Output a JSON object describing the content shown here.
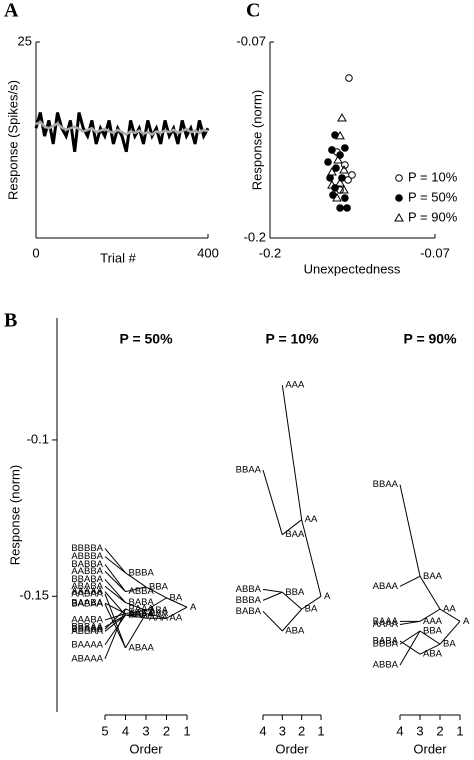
{
  "chart_data": [
    {
      "type": "line",
      "panel_label": "A",
      "xlabel": "Trial #",
      "ylabel": "Response (Spikes/s)",
      "xlim": [
        0,
        400
      ],
      "ylim": [
        0,
        25
      ],
      "xticks": [
        0,
        400
      ],
      "yticks": [
        25
      ],
      "x": [
        0,
        10,
        20,
        30,
        40,
        50,
        60,
        70,
        80,
        90,
        100,
        110,
        120,
        130,
        140,
        150,
        160,
        170,
        180,
        190,
        200,
        210,
        220,
        230,
        240,
        250,
        260,
        270,
        280,
        290,
        300,
        310,
        320,
        330,
        340,
        350,
        360,
        370,
        380,
        390,
        400
      ],
      "series": [
        {
          "color": "#000000",
          "values": [
            14,
            16,
            13,
            15,
            12,
            16,
            14,
            13,
            15,
            11,
            16,
            14,
            13,
            15,
            12,
            14,
            13,
            15,
            12,
            14,
            13,
            11,
            15,
            13,
            14,
            12,
            15,
            13,
            14,
            12,
            15,
            13,
            14,
            12,
            15,
            13,
            14,
            12,
            15,
            13,
            14
          ]
        },
        {
          "color": "#aaaaaa",
          "values": [
            14.5,
            14.8,
            14.2,
            14.0,
            14.3,
            14.6,
            14.1,
            13.8,
            14.0,
            14.2,
            13.9,
            13.6,
            13.8,
            14.0,
            13.5,
            13.7,
            13.9,
            13.6,
            13.4,
            13.8,
            13.5,
            13.2,
            13.6,
            13.4,
            13.7,
            13.3,
            13.5,
            13.2,
            13.6,
            13.4,
            13.7,
            13.5,
            13.8,
            13.4,
            13.6,
            13.9,
            13.5,
            13.7,
            13.4,
            13.8,
            13.6
          ]
        }
      ]
    },
    {
      "type": "scatter",
      "panel_label": "C",
      "xlabel": "Unexpectedness",
      "ylabel": "Response (norm)",
      "xlim": [
        -0.2,
        -0.07
      ],
      "ylim": [
        -0.2,
        -0.07
      ],
      "xticks": [
        -0.2,
        -0.07
      ],
      "yticks": [
        -0.2,
        -0.07
      ],
      "series": [
        {
          "name": "P = 10%",
          "marker": "open-circle",
          "color": "#000000",
          "x": [
            -0.1378,
            -0.1472,
            -0.141,
            -0.1354,
            -0.1385,
            -0.1448
          ],
          "values": [
            -0.0939,
            -0.143,
            -0.1516,
            -0.1582,
            -0.1615,
            -0.1682
          ]
        },
        {
          "name": "P = 50%",
          "marker": "filled-circle",
          "color": "#000000",
          "x": [
            -0.1488,
            -0.1512,
            -0.1448,
            -0.141,
            -0.1543,
            -0.148,
            -0.1527,
            -0.1433,
            -0.1488,
            -0.141,
            -0.1448,
            -0.1393,
            -0.1504
          ],
          "values": [
            -0.1317,
            -0.1416,
            -0.145,
            -0.1403,
            -0.1496,
            -0.1536,
            -0.1602,
            -0.1602,
            -0.1668,
            -0.1735,
            -0.1801,
            -0.1801,
            -0.1715
          ]
        },
        {
          "name": "P = 90%",
          "marker": "triangle",
          "color": "#000000",
          "x": [
            -0.1433,
            -0.1448,
            -0.1464,
            -0.1512,
            -0.1417,
            -0.1512,
            -0.1448,
            -0.1472,
            -0.1417
          ],
          "values": [
            -0.1204,
            -0.1323,
            -0.1483,
            -0.1562,
            -0.1549,
            -0.1649,
            -0.1635,
            -0.1735,
            -0.1682
          ]
        }
      ]
    },
    {
      "type": "tree",
      "panel_label": "B",
      "ylabel": "Response (norm)",
      "ylim": [
        -0.187,
        -0.061
      ],
      "yticks": [
        -0.1,
        -0.15
      ],
      "panels": [
        {
          "title": "P = 50%",
          "xlabel": "Order",
          "xlim": [
            5,
            1
          ],
          "xticks": [
            5,
            4,
            3,
            2,
            1
          ],
          "nodes": [
            {
              "label": "A",
              "value": -0.1535
            },
            {
              "label": "BA",
              "value": -0.1505
            },
            {
              "label": "AA",
              "value": -0.157
            },
            {
              "label": "BBA",
              "value": -0.147
            },
            {
              "label": "ABA",
              "value": -0.1545
            },
            {
              "label": "BAA",
              "value": -0.1555
            },
            {
              "label": "AAA",
              "value": -0.157
            },
            {
              "label": "BBBA",
              "value": -0.1425
            },
            {
              "label": "ABBA",
              "value": -0.1485
            },
            {
              "label": "BABA",
              "value": -0.152
            },
            {
              "label": "AABA",
              "value": -0.1555
            },
            {
              "label": "BBAA",
              "value": -0.156
            },
            {
              "label": "ABAA",
              "value": -0.1665
            },
            {
              "label": "BAAA",
              "value": -0.154
            },
            {
              "label": "AAAA",
              "value": -0.156
            },
            {
              "label": "BBBBA",
              "value": -0.1347
            },
            {
              "label": "ABBBA",
              "value": -0.1373
            },
            {
              "label": "BABBA",
              "value": -0.1398
            },
            {
              "label": "AABBA",
              "value": -0.142
            },
            {
              "label": "BBABA",
              "value": -0.1446
            },
            {
              "label": "ABABA",
              "value": -0.1468
            },
            {
              "label": "BAABA",
              "value": -0.1522
            },
            {
              "label": "AAABA",
              "value": -0.1576
            },
            {
              "label": "BBBAA",
              "value": -0.1598
            },
            {
              "label": "ABBAA",
              "value": -0.1612
            },
            {
              "label": "BABAA",
              "value": -0.1525
            },
            {
              "label": "AABAA",
              "value": -0.1492
            },
            {
              "label": "BBAAA",
              "value": -0.1605
            },
            {
              "label": "ABAAA",
              "value": -0.17
            },
            {
              "label": "BAAAA",
              "value": -0.1655
            },
            {
              "label": "AAAAA",
              "value": -0.1485
            }
          ]
        },
        {
          "title": "P = 10%",
          "xlabel": "Order",
          "xlim": [
            4,
            1
          ],
          "xticks": [
            4,
            3,
            2,
            1
          ],
          "nodes": [
            {
              "label": "A",
              "value": -0.15
            },
            {
              "label": "AA",
              "value": -0.1255
            },
            {
              "label": "BA",
              "value": -0.1541
            },
            {
              "label": "AAA",
              "value": -0.0825
            },
            {
              "label": "BAA",
              "value": -0.1303
            },
            {
              "label": "BBA",
              "value": -0.1487
            },
            {
              "label": "ABA",
              "value": -0.1611
            },
            {
              "label": "BBAA",
              "value": -0.1096
            },
            {
              "label": "ABBA",
              "value": -0.1478
            },
            {
              "label": "BBBA",
              "value": -0.1513
            },
            {
              "label": "BABA",
              "value": -0.1548
            }
          ]
        },
        {
          "title": "P = 90%",
          "xlabel": "Order",
          "xlim": [
            4,
            1
          ],
          "xticks": [
            4,
            3,
            2,
            1
          ],
          "nodes": [
            {
              "label": "A",
              "value": -0.158
            },
            {
              "label": "AA",
              "value": -0.1541
            },
            {
              "label": "BA",
              "value": -0.1653
            },
            {
              "label": "BAA",
              "value": -0.1436
            },
            {
              "label": "AAA",
              "value": -0.158
            },
            {
              "label": "BBA",
              "value": -0.1611
            },
            {
              "label": "ABA",
              "value": -0.1685
            },
            {
              "label": "BBAA",
              "value": -0.1143
            },
            {
              "label": "ABAA",
              "value": -0.1468
            },
            {
              "label": "BAAA",
              "value": -0.158
            },
            {
              "label": "AAAA",
              "value": -0.159
            },
            {
              "label": "BBBA",
              "value": -0.1653
            },
            {
              "label": "BABA",
              "value": -0.1643
            },
            {
              "label": "ABBA",
              "value": -0.172
            }
          ]
        }
      ]
    }
  ]
}
